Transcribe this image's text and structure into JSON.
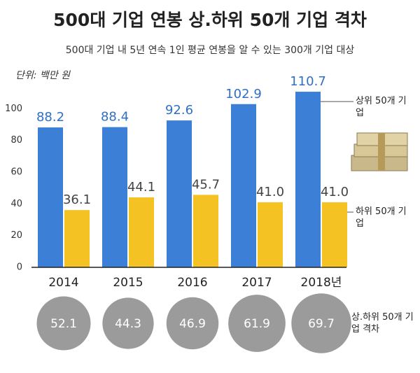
{
  "chart_data": {
    "type": "bar",
    "title": "500대 기업 연봉 상.하위 50개 기업 격차",
    "subtitle": "500대 기업 내 5년 연속 1인 평균 연봉을 알 수 있는 300개 기업 대상",
    "unit": "단위: 백만 원",
    "categories": [
      "2014",
      "2015",
      "2016",
      "2017",
      "2018년"
    ],
    "series": [
      {
        "name": "상위 50개 기업",
        "color": "#3b7fd6",
        "label_color": "#2f6fc4",
        "values": [
          88.2,
          88.4,
          92.6,
          102.9,
          110.7
        ]
      },
      {
        "name": "하위 50개 기업",
        "color": "#f5c223",
        "label_color": "#444444",
        "values": [
          36.1,
          44.1,
          45.7,
          41.0,
          41.0
        ],
        "value_labels": [
          "36.1",
          "44.1",
          "45.7",
          "41.0",
          "41.0"
        ]
      }
    ],
    "gap": {
      "name": "상.하위 50개 기업 격차",
      "color": "#9b9b9b",
      "values": [
        52.1,
        44.3,
        46.9,
        61.9,
        69.7
      ]
    },
    "ylim": [
      0,
      120
    ],
    "yticks": [
      0,
      20,
      40,
      60,
      80,
      100
    ],
    "grid": false
  }
}
